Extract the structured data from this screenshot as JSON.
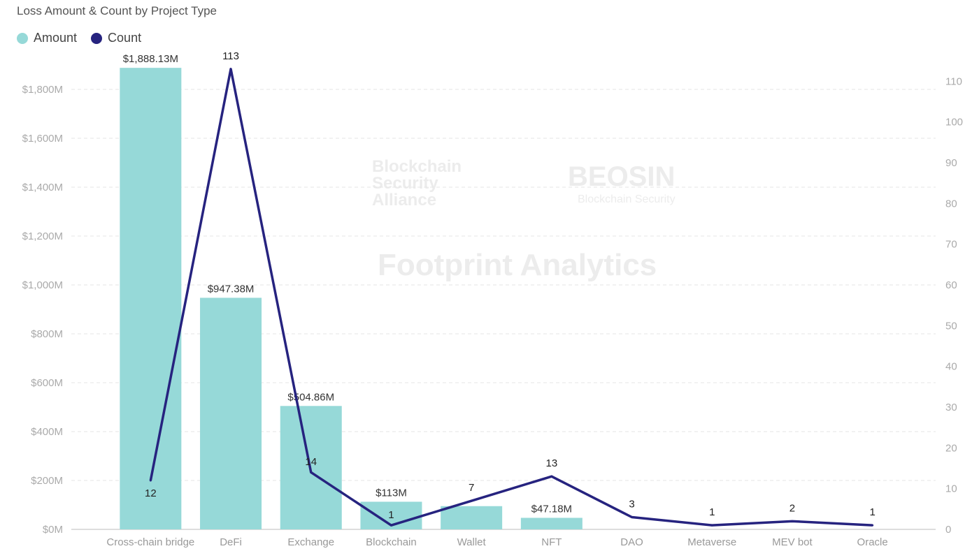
{
  "chart_data": {
    "type": "bar+line",
    "title": "Loss Amount & Count by Project Type",
    "categories": [
      "Cross-chain bridge",
      "DeFi",
      "Exchange",
      "Blockchain",
      "Wallet",
      "NFT",
      "DAO",
      "Metaverse",
      "MEV bot",
      "Oracle"
    ],
    "series": [
      {
        "name": "Amount",
        "type": "bar",
        "axis": "left",
        "color": "#96d9d8",
        "values": [
          1888.13,
          947.38,
          504.86,
          113,
          95,
          47.18,
          0,
          0,
          0,
          0
        ],
        "labels": [
          "$1,888.13M",
          "$947.38M",
          "$504.86M",
          "$113M",
          "",
          "$47.18M",
          "",
          "",
          "",
          ""
        ]
      },
      {
        "name": "Count",
        "type": "line",
        "axis": "right",
        "color": "#26237f",
        "values": [
          12,
          113,
          14,
          1,
          7,
          13,
          3,
          1,
          2,
          1
        ]
      }
    ],
    "ylim": [
      0,
      1900
    ],
    "y2lim": [
      0,
      114
    ],
    "yticks": [
      0,
      200,
      400,
      600,
      800,
      1000,
      1200,
      1400,
      1600,
      1800
    ],
    "ytick_labels": [
      "$0M",
      "$200M",
      "$400M",
      "$600M",
      "$800M",
      "$1,000M",
      "$1,200M",
      "$1,400M",
      "$1,600M",
      "$1,800M"
    ],
    "y2ticks": [
      0,
      10,
      20,
      30,
      40,
      50,
      60,
      70,
      80,
      90,
      100,
      110
    ],
    "grid": true,
    "legend_position": "top-left"
  },
  "watermarks": [
    "Blockchain Security Alliance",
    "BEOSIN",
    "Blockchain Security",
    "Footprint Analytics"
  ]
}
